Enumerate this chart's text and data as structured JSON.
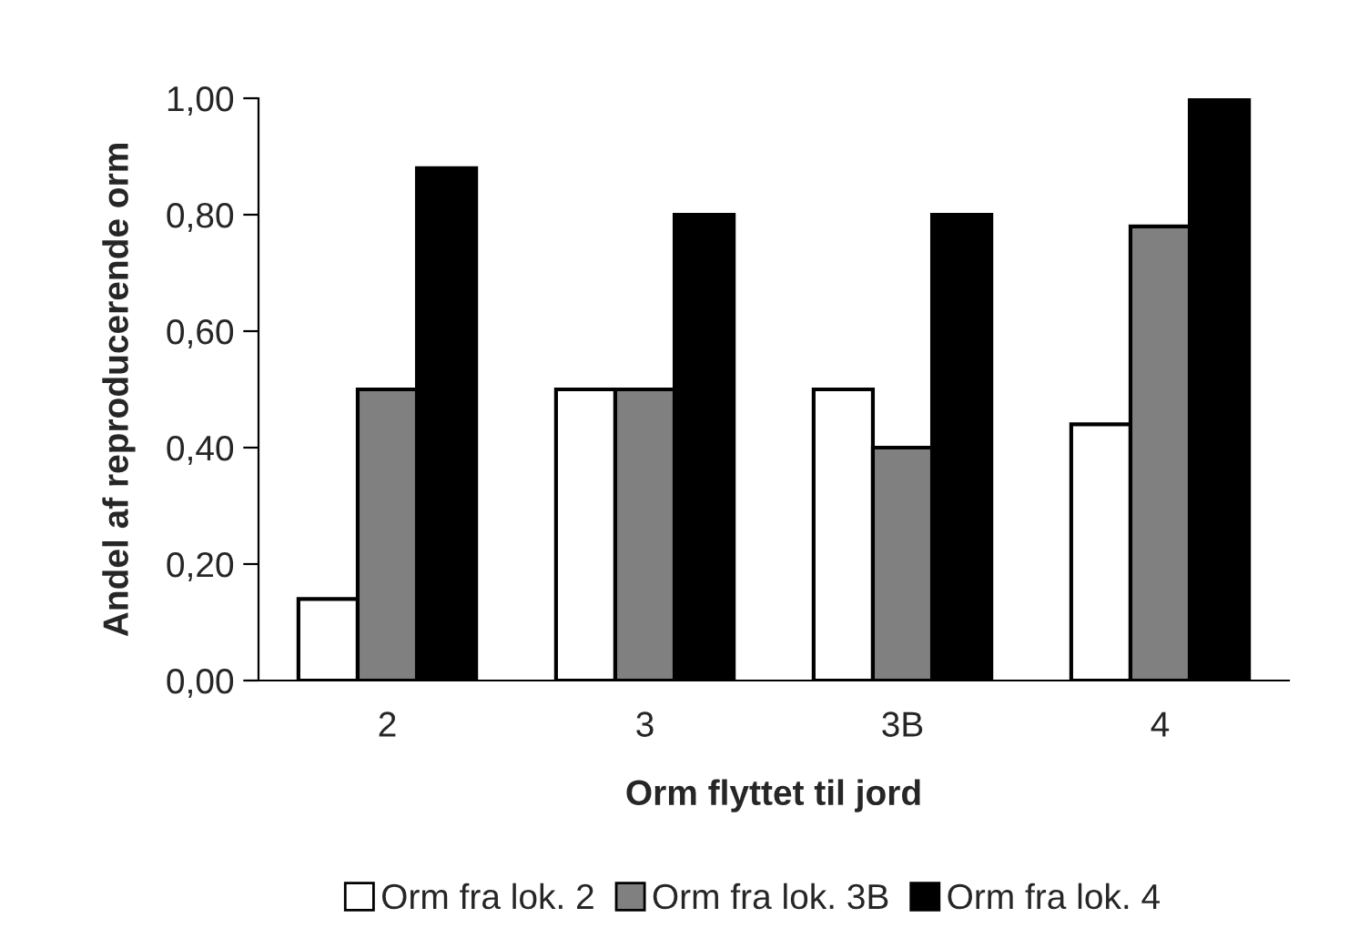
{
  "chart_data": {
    "type": "bar",
    "xlabel": "Orm flyttet til jord",
    "ylabel": "Andel af reproducerende orm",
    "categories": [
      "2",
      "3",
      "3B",
      "4"
    ],
    "series": [
      {
        "name": "Orm fra lok. 2",
        "color": "#ffffff",
        "values": [
          0.14,
          0.5,
          0.5,
          0.44
        ]
      },
      {
        "name": "Orm fra lok. 3B",
        "color": "#808080",
        "values": [
          0.5,
          0.5,
          0.4,
          0.78
        ]
      },
      {
        "name": "Orm fra lok. 4",
        "color": "#000000",
        "values": [
          0.88,
          0.8,
          0.8,
          1.0
        ]
      }
    ],
    "ylim": [
      0,
      1
    ],
    "yticks": [
      {
        "value": 0,
        "label": "0,00"
      },
      {
        "value": 0.2,
        "label": "0,20"
      },
      {
        "value": 0.4,
        "label": "0,40"
      },
      {
        "value": 0.6,
        "label": "0,60"
      },
      {
        "value": 0.8,
        "label": "0,80"
      },
      {
        "value": 1,
        "label": "1,00"
      }
    ],
    "grid": false,
    "legend": "bottom"
  }
}
